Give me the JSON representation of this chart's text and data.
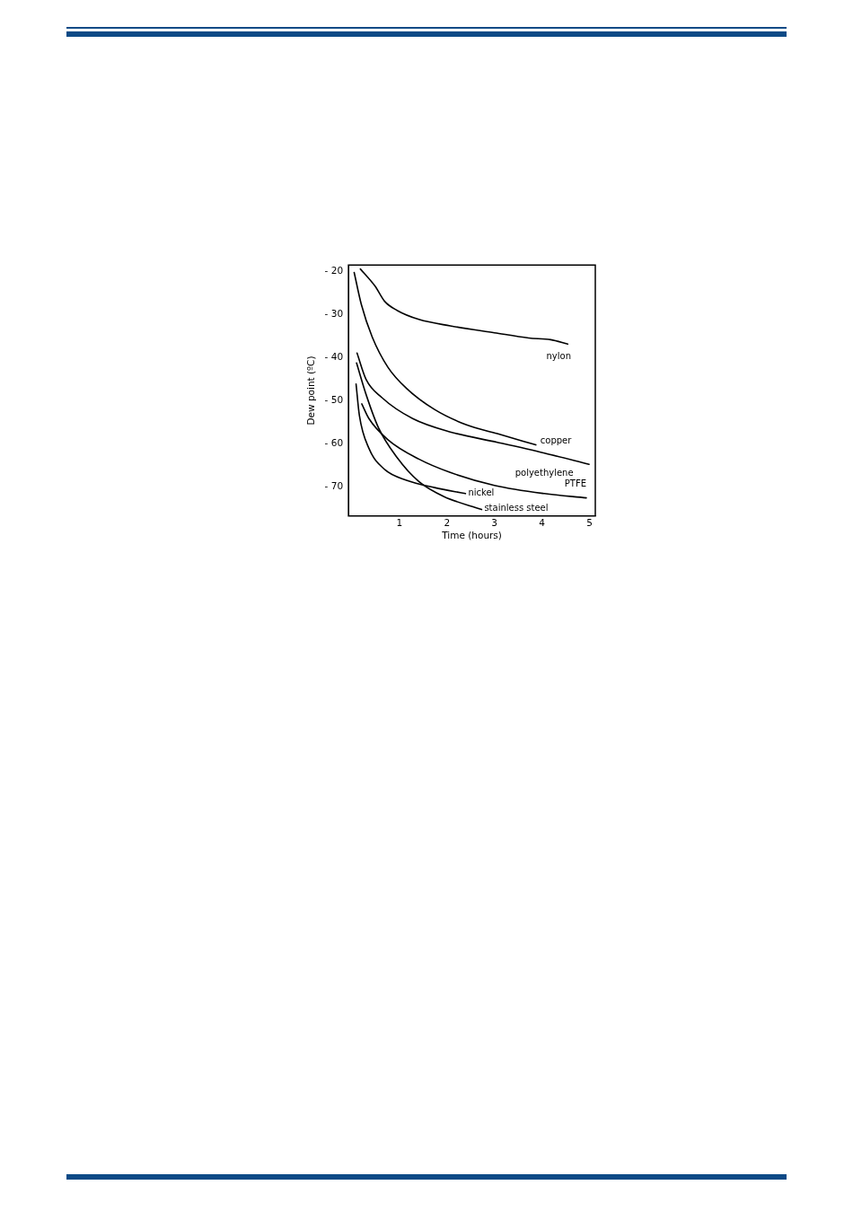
{
  "chart_data": {
    "type": "line",
    "xlabel": "Time (hours)",
    "ylabel": "Dew point (ºC)",
    "xlim": [
      -0.07,
      5.12
    ],
    "xticks": [
      1,
      2,
      3,
      4,
      5
    ],
    "ylim": [
      -76.8,
      -18.6
    ],
    "yticks": [
      {
        "value": -20,
        "label": "- 20"
      },
      {
        "value": -30,
        "label": "- 30"
      },
      {
        "value": -40,
        "label": "- 40"
      },
      {
        "value": -50,
        "label": "- 50"
      },
      {
        "value": -60,
        "label": "- 60"
      },
      {
        "value": -70,
        "label": "- 70"
      }
    ],
    "grid": false,
    "legend": false,
    "marker": "none",
    "line_style": "solid",
    "series": [
      {
        "name": "nylon",
        "color": "#000000",
        "x": [
          0.18,
          0.49,
          0.69,
          0.95,
          1.41,
          2.07,
          3.0,
          3.72,
          4.18,
          4.54
        ],
        "values": [
          -19.5,
          -23.5,
          -27,
          -29.1,
          -31.2,
          -32.7,
          -34.3,
          -35.5,
          -35.9,
          -36.9
        ]
      },
      {
        "name": "copper",
        "color": "#000000",
        "x": [
          0.05,
          0.2,
          0.43,
          0.76,
          1.15,
          1.74,
          2.4,
          3.06,
          3.87
        ],
        "values": [
          -20.3,
          -27.7,
          -35.3,
          -42.3,
          -47.2,
          -52.1,
          -55.6,
          -57.7,
          -60.3
        ]
      },
      {
        "name": "polyethylene",
        "color": "#000000",
        "x": [
          0.11,
          0.3,
          0.63,
          1.28,
          2.07,
          3.06,
          4.05,
          4.99
        ],
        "values": [
          -39,
          -45.1,
          -49.3,
          -54.2,
          -57.3,
          -59.7,
          -62.2,
          -64.8
        ]
      },
      {
        "name": "PTFE",
        "color": "#000000",
        "x": [
          0.21,
          0.36,
          0.76,
          1.41,
          2.07,
          3.0,
          4.05,
          4.93
        ],
        "values": [
          -50.8,
          -54.2,
          -59.1,
          -63.6,
          -66.7,
          -69.7,
          -71.6,
          -72.6
        ]
      },
      {
        "name": "nickel",
        "color": "#000000",
        "x": [
          0.09,
          0.16,
          0.36,
          0.69,
          1.15,
          1.74,
          2.39
        ],
        "values": [
          -46.2,
          -53.5,
          -61.1,
          -66,
          -68.5,
          -70.2,
          -71.6
        ]
      },
      {
        "name": "stainless steel",
        "color": "#000000",
        "x": [
          0.1,
          0.3,
          0.56,
          0.95,
          1.41,
          1.94,
          2.73
        ],
        "values": [
          -41.3,
          -48.6,
          -56.3,
          -63.2,
          -68.8,
          -72.3,
          -75.3
        ]
      }
    ]
  }
}
